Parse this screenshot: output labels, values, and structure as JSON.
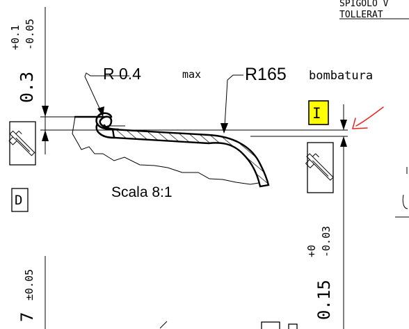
{
  "header_note": {
    "line1": "SPIGOLO V",
    "line2": "TOLLERAT"
  },
  "callouts": {
    "radius_edge": {
      "value": "R 0.4",
      "suffix": "max"
    },
    "radius_crown": {
      "value": "R165",
      "suffix": "bombatura"
    }
  },
  "scale_label": "Scala 8:1",
  "dimensions": {
    "top_thickness": {
      "nominal": "0.3",
      "upper": "+0.1",
      "lower": "-0.05"
    },
    "right_thickness": {
      "nominal": "0.15",
      "upper": "+0",
      "lower": "-0.03"
    },
    "bottom_left": {
      "nominal": "7",
      "tol": "±0.05"
    }
  },
  "inspection_symbols": {
    "letter_i": "I",
    "letter_d": "D",
    "highlight_color": "#ffff00"
  },
  "annotation": {
    "arrow_color": "#e8261c"
  }
}
